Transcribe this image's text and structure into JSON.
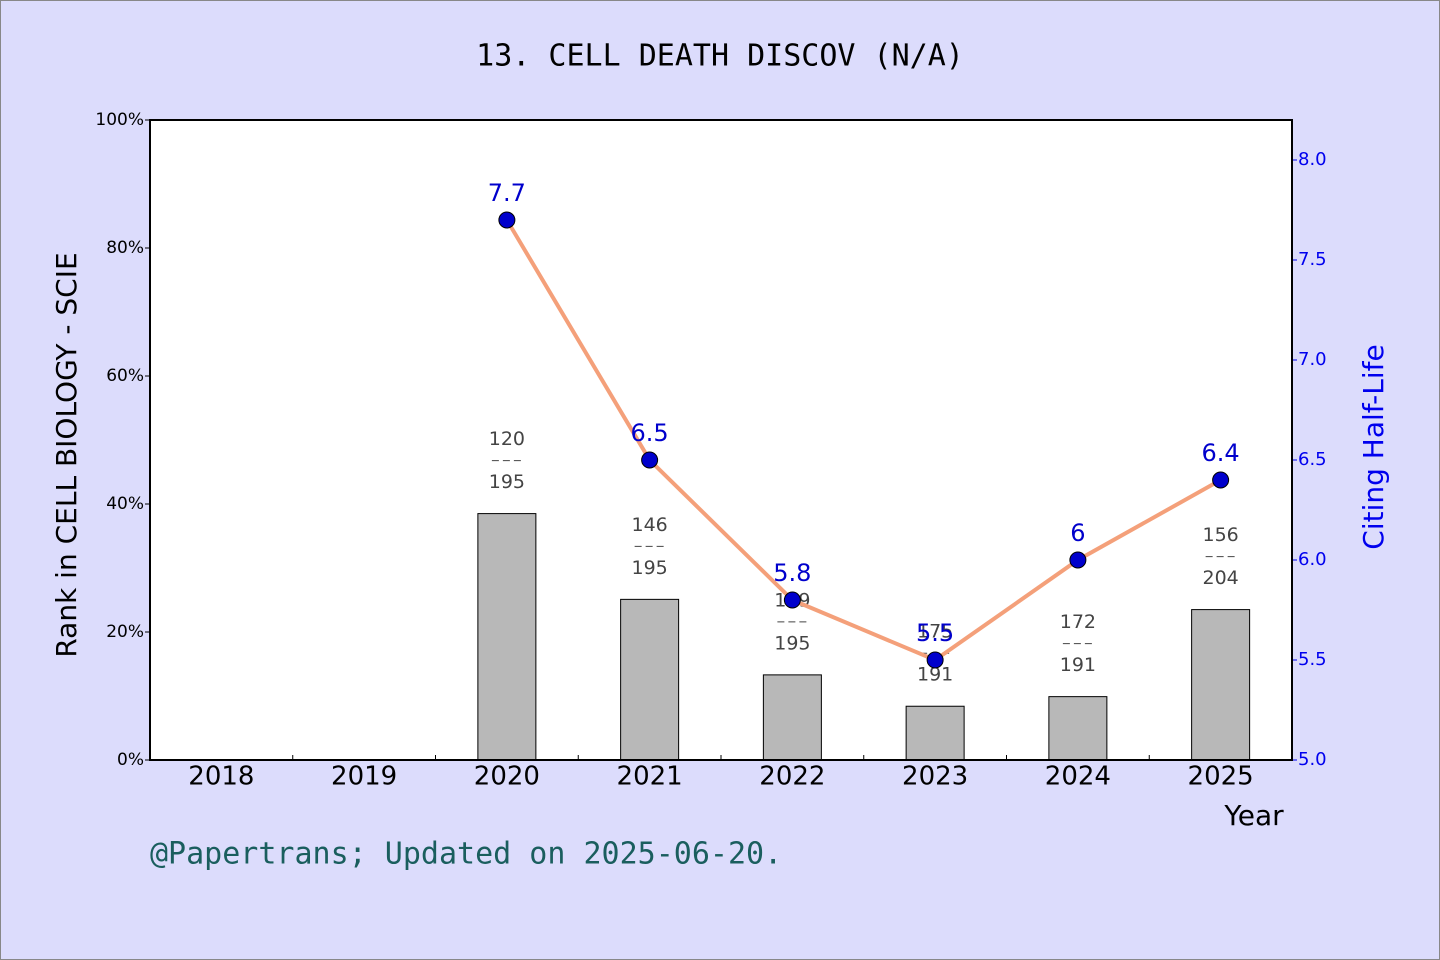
{
  "chart_data": {
    "type": "combo",
    "title": "13. CELL DEATH DISCOV (N/A)",
    "x_label": "Year",
    "y_label": "Rank in CELL BIOLOGY - SCIE",
    "y2_label": "Citing Half-Life",
    "footer": "@Papertrans; Updated on 2025-06-20.",
    "categories": [
      "2018",
      "2019",
      "2020",
      "2021",
      "2022",
      "2023",
      "2024",
      "2025"
    ],
    "ylim": [
      0,
      100
    ],
    "yticks": [
      {
        "value": 0,
        "label": "0%"
      },
      {
        "value": 20,
        "label": "20%"
      },
      {
        "value": 40,
        "label": "40%"
      },
      {
        "value": 60,
        "label": "60%"
      },
      {
        "value": 80,
        "label": "80%"
      },
      {
        "value": 100,
        "label": "100%"
      }
    ],
    "y2lim": [
      5.0,
      8.2
    ],
    "y2ticks": [
      {
        "value": 5.0,
        "label": "5.0"
      },
      {
        "value": 5.5,
        "label": "5.5"
      },
      {
        "value": 6.0,
        "label": "6.0"
      },
      {
        "value": 6.5,
        "label": "6.5"
      },
      {
        "value": 7.0,
        "label": "7.0"
      },
      {
        "value": 7.5,
        "label": "7.5"
      },
      {
        "value": 8.0,
        "label": "8.0"
      }
    ],
    "series": [
      {
        "type": "bar",
        "color": "#b8b8b8",
        "values": [
          null,
          null,
          38.5,
          25.1,
          13.3,
          8.4,
          9.9,
          23.5
        ]
      },
      {
        "type": "line",
        "axis": "y2",
        "color": "#f4a07a",
        "marker_color": "#0000cc",
        "values": [
          null,
          null,
          7.7,
          6.5,
          5.8,
          5.5,
          6,
          6.4
        ]
      }
    ],
    "rank_labels": {
      "ranks": [
        null,
        null,
        120,
        146,
        169,
        175,
        172,
        156
      ],
      "totals": [
        null,
        null,
        195,
        195,
        195,
        191,
        191,
        204
      ]
    }
  }
}
